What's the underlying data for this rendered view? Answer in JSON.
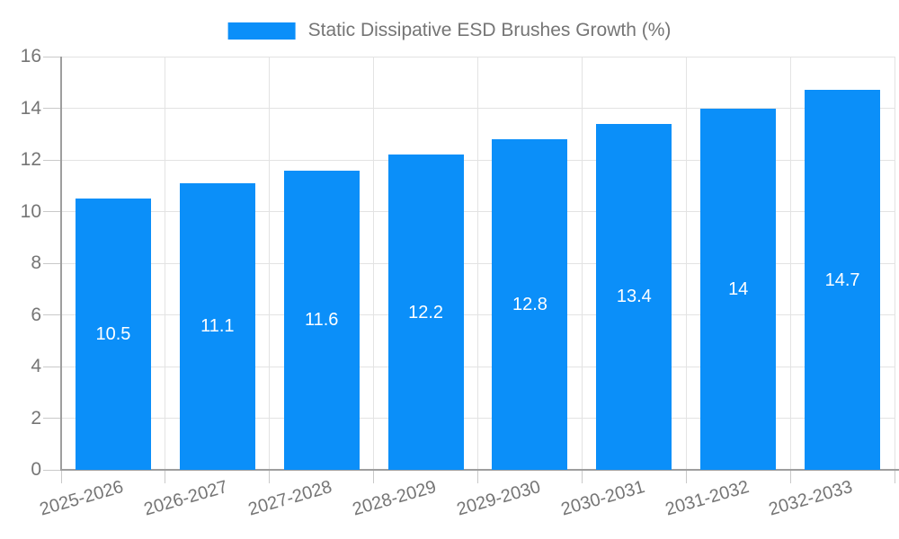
{
  "chart_data": {
    "type": "bar",
    "title": "Static Dissipative ESD Brushes Growth (%)",
    "categories": [
      "2025-2026",
      "2026-2027",
      "2027-2028",
      "2028-2029",
      "2029-2030",
      "2030-2031",
      "2031-2032",
      "2032-2033"
    ],
    "values": [
      10.5,
      11.1,
      11.6,
      12.2,
      12.8,
      13.4,
      14,
      14.7
    ],
    "value_labels": [
      "10.5",
      "11.1",
      "11.6",
      "12.2",
      "12.8",
      "13.4",
      "14",
      "14.7"
    ],
    "xlabel": "",
    "ylabel": "",
    "ylim": [
      0,
      16
    ],
    "ytick_step": 2,
    "ytick_labels": [
      "0",
      "2",
      "4",
      "6",
      "8",
      "10",
      "12",
      "14",
      "16"
    ],
    "grid": "on",
    "legend_position": "top-center",
    "colors": {
      "bar": "#0b8ff9",
      "bar_value_text": "#ffffff",
      "axis_text": "#757575",
      "axis_line": "#9e9e9e",
      "gridline": "#e3e3e3",
      "tick": "#c9c9c9",
      "background": "#ffffff"
    }
  }
}
